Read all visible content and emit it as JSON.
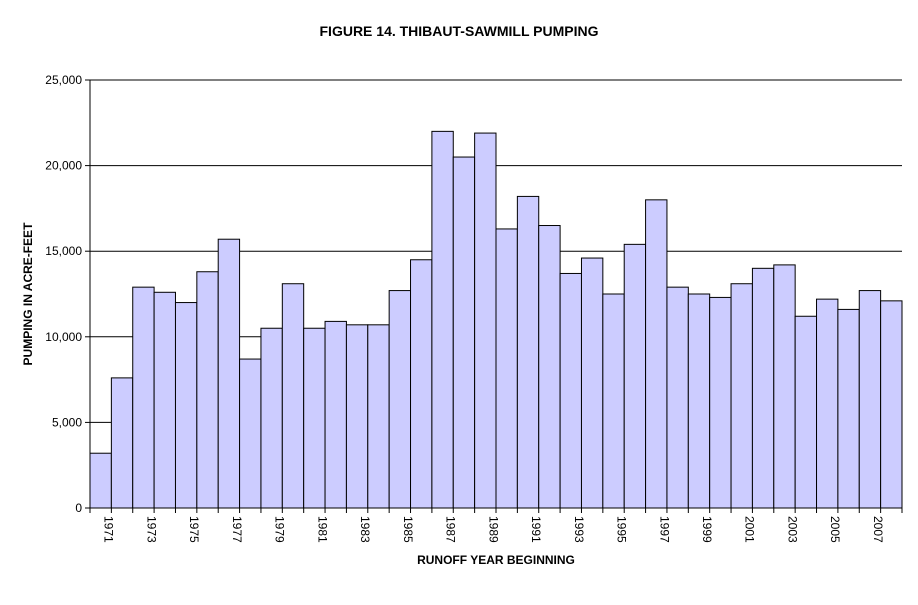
{
  "chart_data": {
    "type": "bar",
    "title": "FIGURE 14. THIBAUT-SAWMILL PUMPING",
    "xlabel": "RUNOFF YEAR BEGINNING",
    "ylabel": "PUMPING IN ACRE-FEET",
    "ylim": [
      0,
      25000
    ],
    "yticks": [
      "0",
      "5,000",
      "10,000",
      "15,000",
      "20,000",
      "25,000"
    ],
    "ytick_values": [
      0,
      5000,
      10000,
      15000,
      20000,
      25000
    ],
    "grid": true,
    "categories": [
      "1971",
      "1972",
      "1973",
      "1974",
      "1975",
      "1976",
      "1977",
      "1978",
      "1979",
      "1980",
      "1981",
      "1982",
      "1983",
      "1984",
      "1985",
      "1986",
      "1987",
      "1988",
      "1989",
      "1990",
      "1991",
      "1992",
      "1993",
      "1994",
      "1995",
      "1996",
      "1997",
      "1998",
      "1999",
      "2000",
      "2001",
      "2002",
      "2003",
      "2004",
      "2005",
      "2006",
      "2007",
      "2008"
    ],
    "values": [
      3200,
      7600,
      12900,
      12600,
      12000,
      13800,
      15700,
      8700,
      10500,
      13100,
      10500,
      10900,
      10700,
      10700,
      12700,
      14500,
      22000,
      20500,
      21900,
      16300,
      18200,
      16500,
      13700,
      14600,
      12500,
      15400,
      18000,
      12900,
      12500,
      12300,
      13100,
      14000,
      14200,
      11200,
      12200,
      11600,
      12700,
      12100
    ],
    "xtick_labels": [
      "1971",
      "1973",
      "1975",
      "1977",
      "1979",
      "1981",
      "1983",
      "1985",
      "1987",
      "1989",
      "1991",
      "1993",
      "1995",
      "1997",
      "1999",
      "2001",
      "2003",
      "2005",
      "2007"
    ],
    "bar_color": "#ccccff"
  }
}
